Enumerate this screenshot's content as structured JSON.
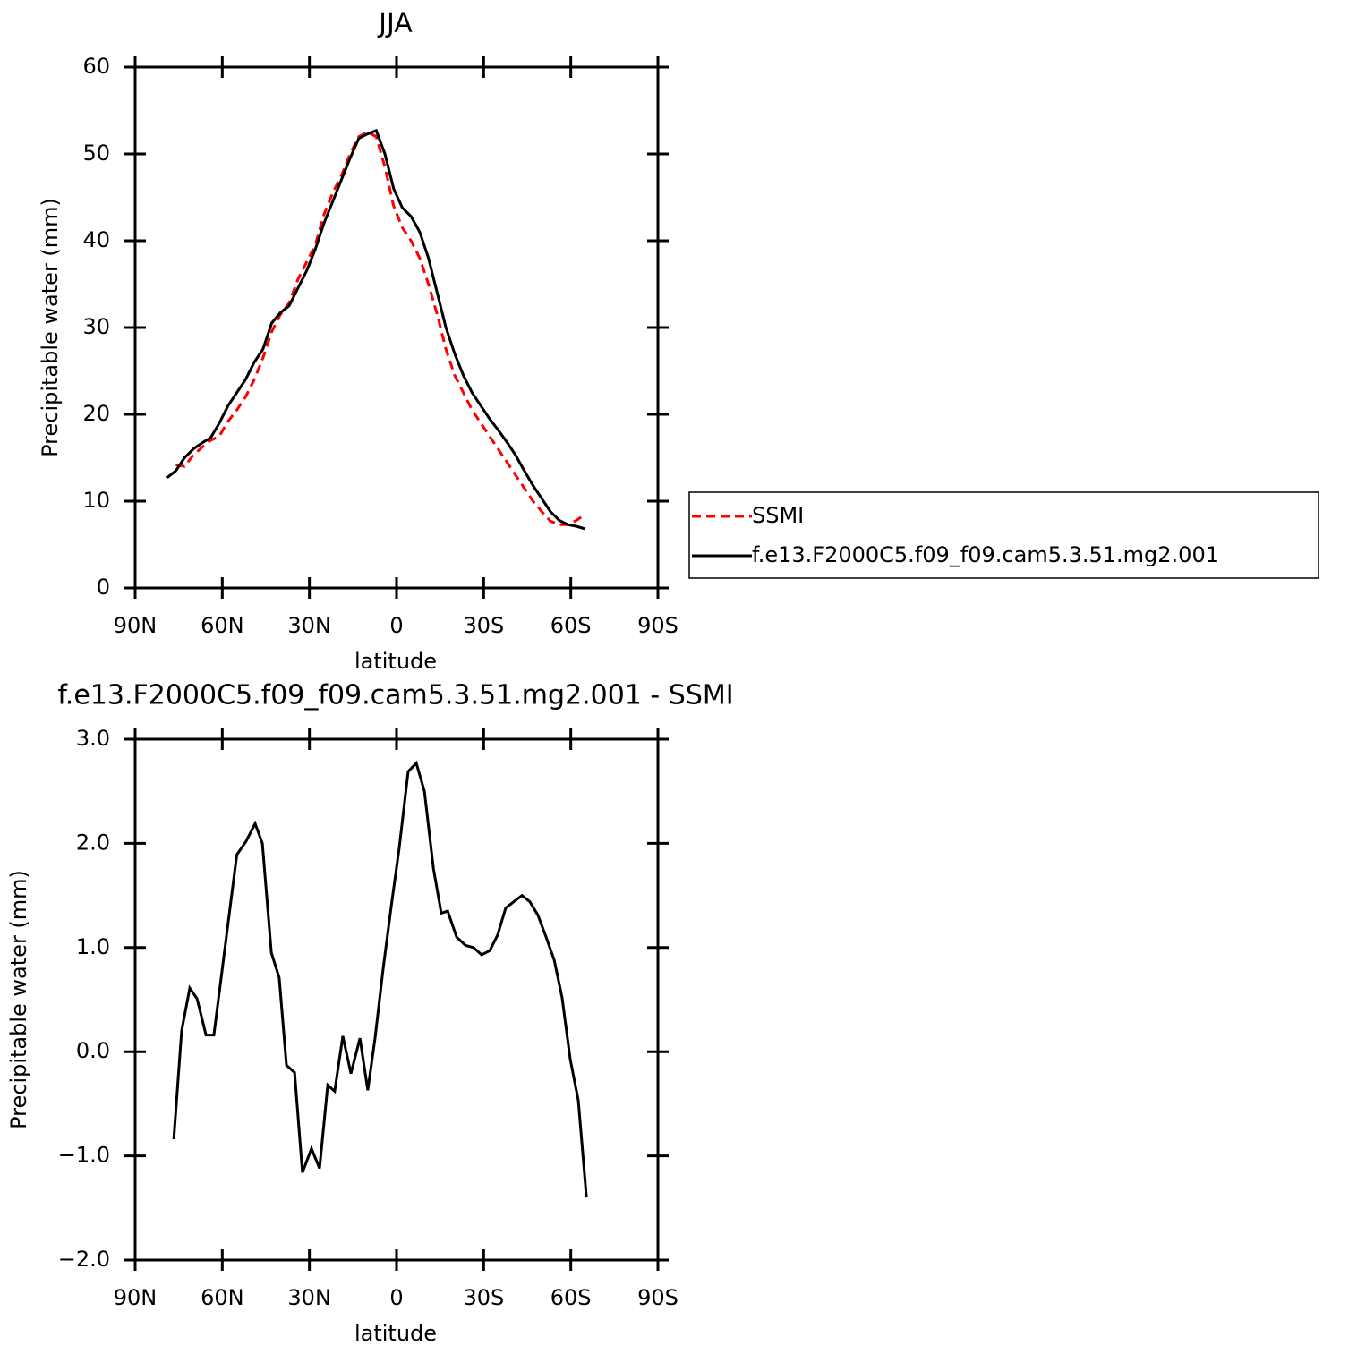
{
  "chart_data": [
    {
      "type": "line",
      "title": "JJA",
      "xlabel": "latitude",
      "ylabel": "Precipitable water (mm)",
      "x": [
        79,
        76,
        73,
        70,
        67,
        64,
        61,
        58,
        55,
        52,
        49,
        46,
        43,
        40,
        37,
        34,
        31,
        28,
        25,
        22,
        19,
        16,
        13,
        10,
        7,
        4,
        1,
        -2,
        -5,
        -8,
        -11,
        -14,
        -17,
        -20,
        -23,
        -26,
        -29,
        -32,
        -35,
        -38,
        -41,
        -44,
        -47,
        -50,
        -53,
        -56,
        -59,
        -62,
        -65
      ],
      "series": [
        {
          "name": "SSMI",
          "color": "#ff0000",
          "dash": "dashed",
          "values": [
            null,
            14.2,
            14,
            15.3,
            16.2,
            17,
            17.5,
            19.2,
            20.5,
            22,
            24,
            26.5,
            29.5,
            31.5,
            32.8,
            35.5,
            37.5,
            39.5,
            43,
            45.5,
            47.5,
            50,
            52,
            52.5,
            52,
            48.5,
            44,
            41.5,
            40,
            38,
            35,
            31.5,
            27.5,
            24.5,
            22.5,
            20.5,
            19,
            17.5,
            16,
            14.5,
            13,
            11.5,
            10,
            8.8,
            7.7,
            7.3,
            7.3,
            7.8,
            8.5
          ]
        },
        {
          "name": "f.e13.F2000C5.f09_f09.cam5.3.51.mg2.001",
          "color": "#000000",
          "dash": "solid",
          "values": [
            12.7,
            13.5,
            15,
            16,
            16.7,
            17.3,
            19,
            21,
            22.5,
            24,
            26,
            27.5,
            30.5,
            31.7,
            32.5,
            34.5,
            36.5,
            39,
            42,
            44.5,
            47,
            49.5,
            51.8,
            52.3,
            52.7,
            50,
            46,
            43.8,
            42.8,
            41,
            38,
            34,
            30,
            27,
            24.5,
            22.5,
            21,
            19.5,
            18.2,
            16.8,
            15.3,
            13.5,
            11.8,
            10.3,
            8.8,
            7.8,
            7.3,
            7.1,
            6.8
          ]
        }
      ],
      "xlim": [
        90,
        -90
      ],
      "xticks": [
        {
          "value": 90,
          "label": "90N"
        },
        {
          "value": 60,
          "label": "60N"
        },
        {
          "value": 30,
          "label": "30N"
        },
        0,
        {
          "value": -30,
          "label": "30S"
        },
        {
          "value": -60,
          "label": "60S"
        },
        {
          "value": -90,
          "label": "90S"
        }
      ],
      "ylim": [
        0,
        60
      ],
      "yticks": [
        0,
        10,
        20,
        30,
        40,
        50,
        60
      ],
      "grid": false,
      "legend": "outside-right"
    },
    {
      "type": "line",
      "title": "f.e13.F2000C5.f09_f09.cam5.3.51.mg2.001 - SSMI",
      "xlabel": "latitude",
      "ylabel": "Precipitable water (mm)",
      "x": [
        76.7,
        74,
        71.2,
        68.7,
        65.6,
        62.9,
        55,
        51.8,
        48.7,
        46.2,
        43.1,
        40.4,
        37.9,
        35.1,
        32.4,
        29.3,
        26.5,
        23.7,
        21.3,
        18.5,
        15.7,
        12.6,
        9.9,
        7.4,
        4.6,
        1.8,
        -0.9,
        -4,
        -6.8,
        -9.6,
        -12.7,
        -15.4,
        -17.6,
        -20.7,
        -23.8,
        -26.5,
        -29.3,
        -32.1,
        -34.8,
        -37.6,
        -40.4,
        -43.2,
        -45.9,
        -48.7,
        -51.5,
        -54.3,
        -57,
        -59.8,
        -62.6,
        -65.4
      ],
      "series": [
        {
          "color": "#000000",
          "dash": "solid",
          "values": [
            -0.84,
            0.2,
            0.61,
            0.51,
            0.16,
            0.16,
            1.89,
            2.02,
            2.19,
            2.0,
            0.95,
            0.71,
            -0.13,
            -0.2,
            -1.16,
            -0.93,
            -1.12,
            -0.32,
            -0.38,
            0.15,
            -0.21,
            0.13,
            -0.37,
            0.13,
            0.8,
            1.4,
            1.95,
            2.69,
            2.77,
            2.5,
            1.76,
            1.33,
            1.35,
            1.1,
            1.02,
            1.0,
            0.93,
            0.97,
            1.12,
            1.38,
            1.44,
            1.5,
            1.44,
            1.31,
            1.1,
            0.88,
            0.52,
            -0.07,
            -0.47,
            -1.4
          ]
        }
      ],
      "xlim": [
        90,
        -90
      ],
      "xticks": [
        {
          "value": 90,
          "label": "90N"
        },
        {
          "value": 60,
          "label": "60N"
        },
        {
          "value": 30,
          "label": "30N"
        },
        0,
        {
          "value": -30,
          "label": "30S"
        },
        {
          "value": -60,
          "label": "60S"
        },
        {
          "value": -90,
          "label": "90S"
        }
      ],
      "ylim": [
        -2,
        3
      ],
      "yticks": [
        {
          "value": -2,
          "label": "−2.0"
        },
        {
          "value": -1,
          "label": "−1.0"
        },
        {
          "value": 0,
          "label": "0.0"
        },
        {
          "value": 1,
          "label": "1.0"
        },
        {
          "value": 2,
          "label": "2.0"
        },
        {
          "value": 3,
          "label": "3.0"
        }
      ],
      "grid": false
    }
  ]
}
